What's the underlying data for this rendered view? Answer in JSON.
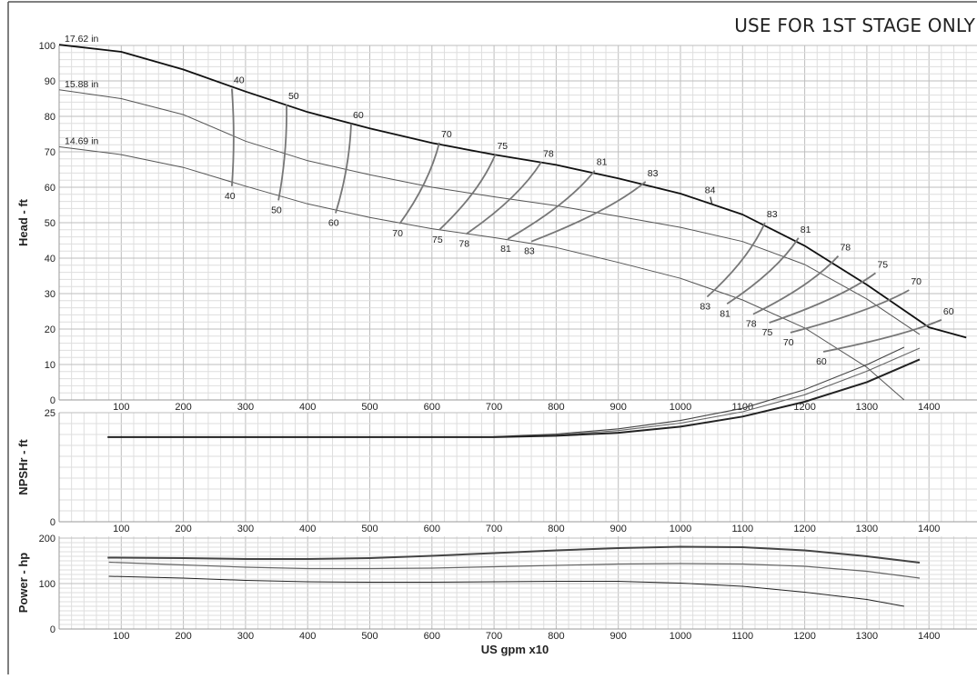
{
  "header": {
    "note": "USE FOR 1ST STAGE ONLY"
  },
  "chart_data": [
    {
      "type": "line",
      "id": "head",
      "ylabel": "Head - ft",
      "xlim": [
        0,
        1460
      ],
      "ylim": [
        0,
        100
      ],
      "x_ticks": [
        100,
        200,
        300,
        400,
        500,
        600,
        700,
        800,
        900,
        1000,
        1100,
        1200,
        1300,
        1400
      ],
      "y_ticks": [
        0,
        10,
        20,
        30,
        40,
        50,
        60,
        70,
        80,
        90,
        100
      ],
      "grid": true,
      "series": [
        {
          "name": "17.62 in",
          "role": "impeller",
          "points": [
            [
              0,
              100.2
            ],
            [
              100,
              98.2
            ],
            [
              200,
              93.2
            ],
            [
              300,
              87
            ],
            [
              400,
              81.2
            ],
            [
              500,
              76.6
            ],
            [
              600,
              72.5
            ],
            [
              700,
              69.2
            ],
            [
              800,
              66.3
            ],
            [
              900,
              62.5
            ],
            [
              1000,
              58.2
            ],
            [
              1100,
              52.3
            ],
            [
              1200,
              43.5
            ],
            [
              1300,
              32.5
            ],
            [
              1400,
              20.5
            ],
            [
              1460,
              17.6
            ]
          ]
        },
        {
          "name": "15.88 in",
          "role": "impeller",
          "points": [
            [
              0,
              87.5
            ],
            [
              100,
              85
            ],
            [
              200,
              80.5
            ],
            [
              300,
              73
            ],
            [
              400,
              67.5
            ],
            [
              500,
              63.5
            ],
            [
              600,
              60
            ],
            [
              700,
              57.3
            ],
            [
              800,
              54.8
            ],
            [
              900,
              51.8
            ],
            [
              1000,
              48.7
            ],
            [
              1100,
              44.7
            ],
            [
              1200,
              38.2
            ],
            [
              1300,
              28.5
            ],
            [
              1385,
              18.5
            ]
          ]
        },
        {
          "name": "14.69 in",
          "role": "impeller",
          "points": [
            [
              0,
              71.4
            ],
            [
              100,
              69.2
            ],
            [
              200,
              65.6
            ],
            [
              300,
              60.3
            ],
            [
              400,
              55.3
            ],
            [
              500,
              51.5
            ],
            [
              600,
              48.3
            ],
            [
              700,
              45.8
            ],
            [
              800,
              43
            ],
            [
              900,
              38.8
            ],
            [
              1000,
              34.3
            ],
            [
              1100,
              28.2
            ],
            [
              1200,
              20.3
            ],
            [
              1300,
              9.2
            ],
            [
              1360,
              0
            ]
          ]
        }
      ],
      "efficiency_contours": [
        {
          "label": "40",
          "top": [
            278,
            87.8
          ],
          "bottom": [
            278,
            60.3
          ]
        },
        {
          "label": "50",
          "top": [
            366,
            83.3
          ],
          "bottom": [
            353,
            56.3
          ]
        },
        {
          "label": "60",
          "top": [
            470,
            77.9
          ],
          "bottom": [
            445,
            52.7
          ]
        },
        {
          "label": "70",
          "top": [
            612,
            72.6
          ],
          "bottom": [
            548,
            49.7
          ]
        },
        {
          "label": "75",
          "top": [
            702,
            69.2
          ],
          "bottom": [
            612,
            48.0
          ]
        },
        {
          "label": "78",
          "top": [
            776,
            67.1
          ],
          "bottom": [
            655,
            46.8
          ]
        },
        {
          "label": "81",
          "top": [
            862,
            64.7
          ],
          "bottom": [
            722,
            45.4
          ]
        },
        {
          "label": "83",
          "top": [
            944,
            61.6
          ],
          "bottom": [
            760,
            44.7
          ]
        },
        {
          "label": "83",
          "top": [
            1136,
            50.0
          ],
          "bottom": [
            1043,
            29.1
          ]
        },
        {
          "label": "81",
          "top": [
            1190,
            45.7
          ],
          "bottom": [
            1075,
            27.1
          ]
        },
        {
          "label": "78",
          "top": [
            1254,
            40.6
          ],
          "bottom": [
            1117,
            24.2
          ]
        },
        {
          "label": "75",
          "top": [
            1314,
            35.8
          ],
          "bottom": [
            1143,
            21.8
          ]
        },
        {
          "label": "70",
          "top": [
            1368,
            31.0
          ],
          "bottom": [
            1177,
            19.0
          ]
        },
        {
          "label": "60",
          "top": [
            1420,
            22.6
          ],
          "bottom": [
            1230,
            13.6
          ]
        }
      ],
      "annotations": [
        {
          "text": "84",
          "x": 1048,
          "y": 57.8
        }
      ]
    },
    {
      "type": "line",
      "id": "npshr",
      "ylabel": "NPSHr - ft",
      "xlim": [
        0,
        1460
      ],
      "ylim": [
        0,
        44
      ],
      "x_ticks": [
        100,
        200,
        300,
        400,
        500,
        600,
        700,
        800,
        900,
        1000,
        1100,
        1200,
        1300,
        1400
      ],
      "y_ticks": [
        0,
        25
      ],
      "grid": true,
      "series": [
        {
          "name": "",
          "points": [
            [
              78,
              19.4
            ],
            [
              500,
              19.4
            ],
            [
              700,
              19.5
            ],
            [
              800,
              20.1
            ],
            [
              900,
              21.3
            ],
            [
              1000,
              23.2
            ],
            [
              1100,
              26
            ],
            [
              1200,
              30.3
            ],
            [
              1300,
              36
            ],
            [
              1360,
              40
            ]
          ]
        },
        {
          "name": "",
          "points": [
            [
              78,
              19.4
            ],
            [
              500,
              19.4
            ],
            [
              700,
              19.4
            ],
            [
              800,
              19.9
            ],
            [
              900,
              20.9
            ],
            [
              1000,
              22.6
            ],
            [
              1100,
              25.2
            ],
            [
              1200,
              29.1
            ],
            [
              1300,
              34.5
            ],
            [
              1385,
              39.8
            ]
          ]
        },
        {
          "name": "",
          "points": [
            [
              78,
              19.4
            ],
            [
              500,
              19.4
            ],
            [
              700,
              19.4
            ],
            [
              800,
              19.7
            ],
            [
              900,
              20.4
            ],
            [
              1000,
              21.8
            ],
            [
              1100,
              24.1
            ],
            [
              1200,
              27.5
            ],
            [
              1300,
              32
            ],
            [
              1385,
              37.2
            ]
          ]
        }
      ]
    },
    {
      "type": "line",
      "id": "power",
      "ylabel": "Power - hp",
      "xlabel": "US gpm x10",
      "xlim": [
        0,
        1460
      ],
      "ylim": [
        0,
        200
      ],
      "x_ticks": [
        100,
        200,
        300,
        400,
        500,
        600,
        700,
        800,
        900,
        1000,
        1100,
        1200,
        1300,
        1400
      ],
      "y_ticks": [
        0,
        100,
        200
      ],
      "grid": true,
      "series": [
        {
          "name": "",
          "points": [
            [
              78,
              157
            ],
            [
              200,
              156
            ],
            [
              300,
              154
            ],
            [
              400,
              154
            ],
            [
              500,
              156
            ],
            [
              600,
              161
            ],
            [
              700,
              167
            ],
            [
              800,
              173
            ],
            [
              900,
              178
            ],
            [
              1000,
              181
            ],
            [
              1100,
              180
            ],
            [
              1200,
              173
            ],
            [
              1300,
              160
            ],
            [
              1385,
              146
            ]
          ]
        },
        {
          "name": "",
          "points": [
            [
              80,
              147
            ],
            [
              200,
              141
            ],
            [
              300,
              136
            ],
            [
              400,
              133
            ],
            [
              500,
              133
            ],
            [
              600,
              134
            ],
            [
              700,
              137
            ],
            [
              800,
              140
            ],
            [
              900,
              143
            ],
            [
              1000,
              144
            ],
            [
              1100,
              143
            ],
            [
              1200,
              138
            ],
            [
              1300,
              127
            ],
            [
              1385,
              112
            ]
          ]
        },
        {
          "name": "",
          "points": [
            [
              80,
              116
            ],
            [
              200,
              112
            ],
            [
              300,
              107
            ],
            [
              400,
              104
            ],
            [
              500,
              103
            ],
            [
              600,
              103
            ],
            [
              700,
              104
            ],
            [
              800,
              105
            ],
            [
              900,
              105
            ],
            [
              1000,
              101
            ],
            [
              1100,
              94
            ],
            [
              1200,
              81
            ],
            [
              1300,
              65
            ],
            [
              1360,
              50
            ]
          ]
        }
      ]
    }
  ]
}
